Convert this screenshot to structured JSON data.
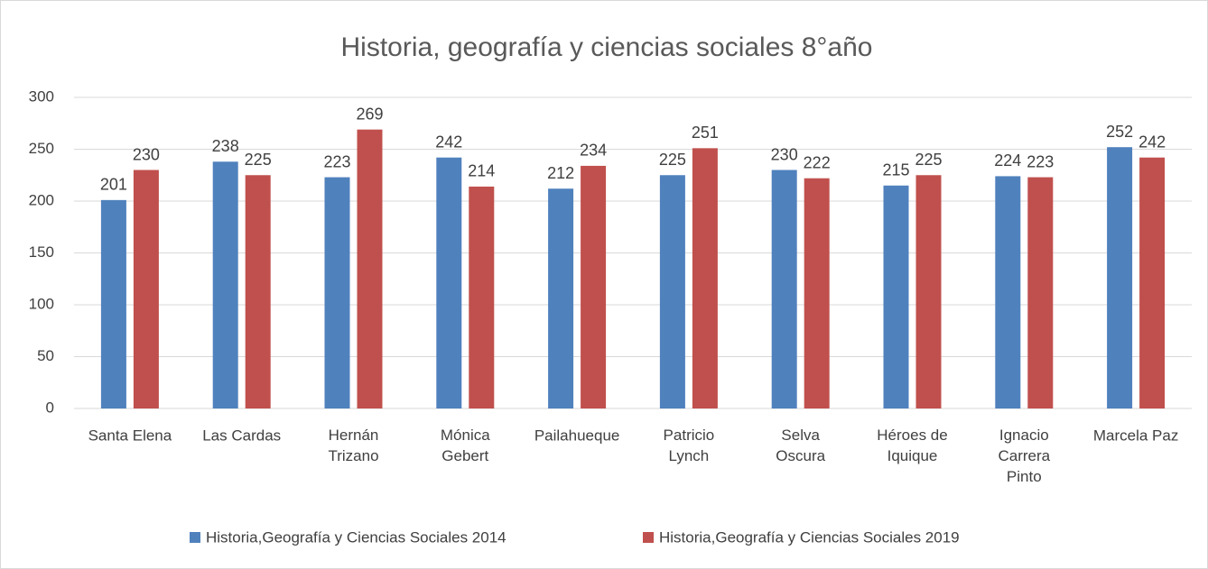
{
  "chart_data": {
    "type": "bar",
    "title": "Historia, geografía y ciencias sociales 8°año",
    "categories": [
      "Santa Elena",
      "Las Cardas",
      "Hernán Trizano",
      "Mónica Gebert",
      "Pailahueque",
      "Patricio Lynch",
      "Selva Oscura",
      "Héroes de Iquique",
      "Ignacio Carrera Pinto",
      "Marcela Paz"
    ],
    "series": [
      {
        "name": "Historia,Geografía y Ciencias Sociales 2014",
        "color": "#4f81bd",
        "values": [
          201,
          238,
          223,
          242,
          212,
          225,
          230,
          215,
          224,
          252
        ]
      },
      {
        "name": "Historia,Geografía y Ciencias Sociales 2019",
        "color": "#c0504d",
        "values": [
          230,
          225,
          269,
          214,
          234,
          251,
          222,
          225,
          223,
          242
        ]
      }
    ],
    "ylim": [
      0,
      300
    ],
    "yticks": [
      0,
      50,
      100,
      150,
      200,
      250,
      300
    ],
    "grid": true,
    "legend": "bottom"
  }
}
